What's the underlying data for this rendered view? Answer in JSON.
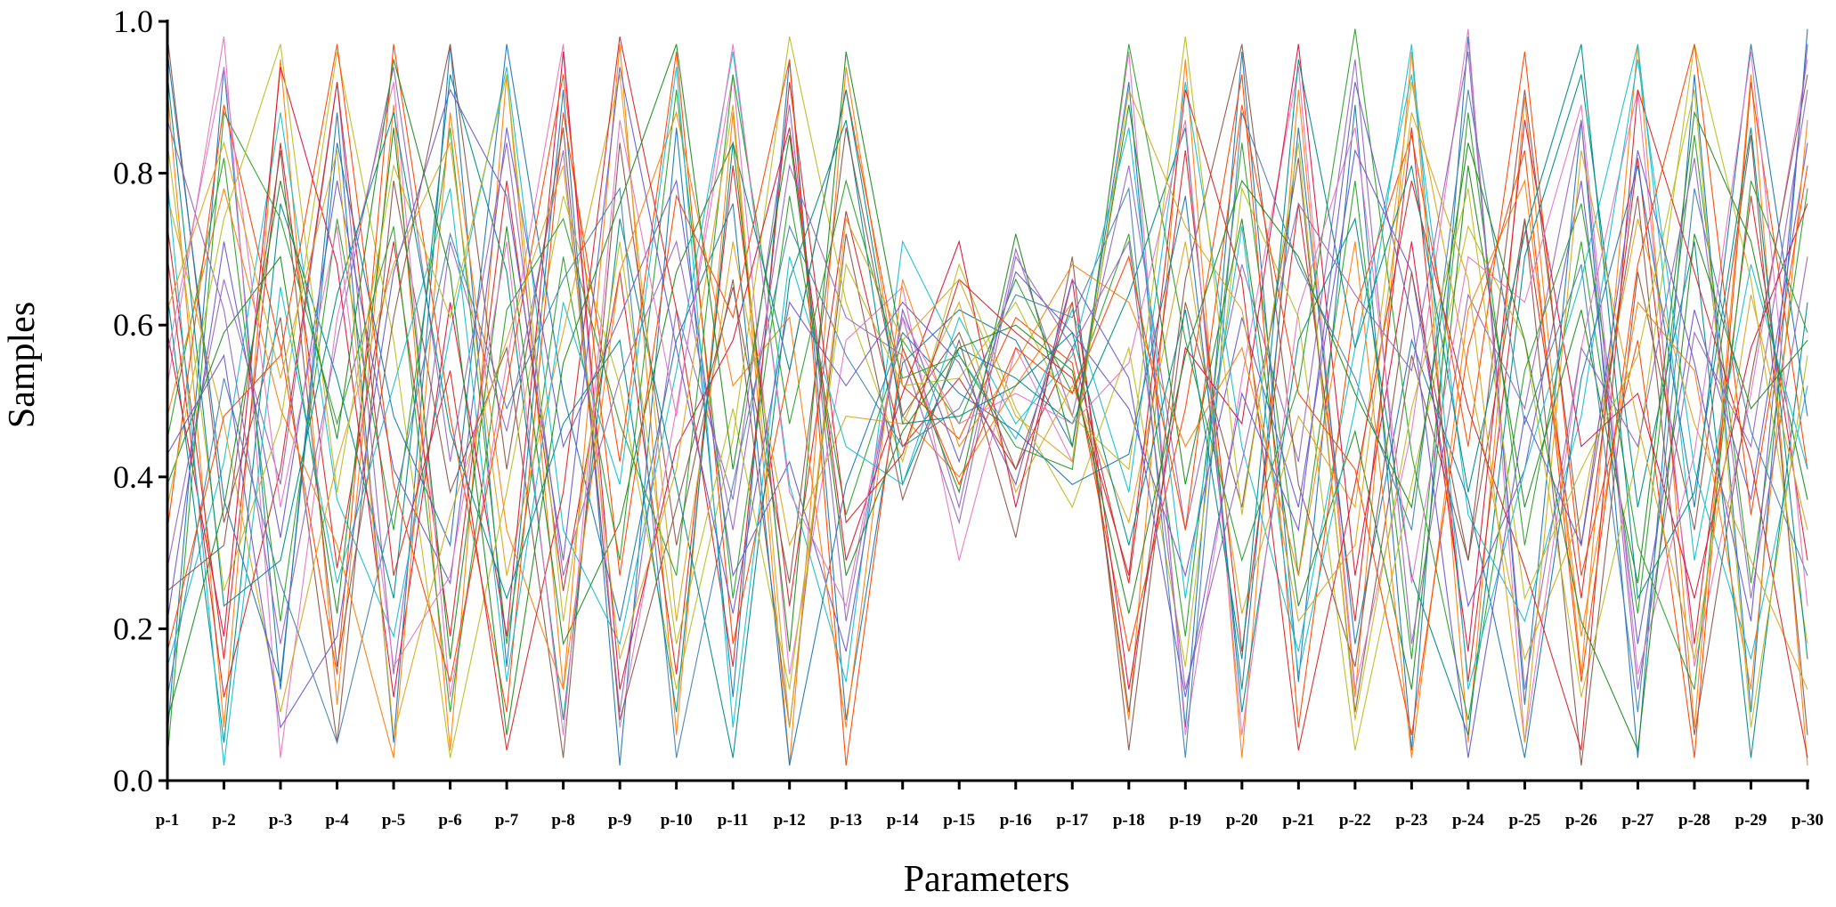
{
  "chart_data": {
    "type": "line",
    "subtype": "parallel-coordinates",
    "title": "",
    "xlabel": "Parameters",
    "ylabel": "Samples",
    "ylim": [
      0,
      1
    ],
    "y_ticks": [
      "0.0",
      "0.2",
      "0.4",
      "0.6",
      "0.8",
      "1.0"
    ],
    "categories": [
      "p-1",
      "p-2",
      "p-3",
      "p-4",
      "p-5",
      "p-6",
      "p-7",
      "p-8",
      "p-9",
      "p-10",
      "p-11",
      "p-12",
      "p-13",
      "p-14",
      "p-15",
      "p-16",
      "p-17",
      "p-18",
      "p-19",
      "p-20",
      "p-21",
      "p-22",
      "p-23",
      "p-24",
      "p-25",
      "p-26",
      "p-27",
      "p-28",
      "p-29",
      "p-30"
    ],
    "grid": false,
    "legend": "none",
    "series_colors": [
      "#1f77b4",
      "#ff7f0e",
      "#2ca02c",
      "#d62728",
      "#9467bd",
      "#8c564b",
      "#e377c2",
      "#17becf",
      "#bcbd22",
      "#ff4500",
      "#008b8b",
      "#6a5acd",
      "#daa520",
      "#228b22",
      "#dc143c",
      "#4682b4"
    ],
    "series": [
      {
        "values": [
          0.06,
          0.94,
          0.12,
          0.88,
          0.05,
          0.97,
          0.15,
          0.91,
          0.02,
          0.86,
          0.11,
          0.95,
          0.08,
          0.55,
          0.62,
          0.58,
          0.44,
          0.92,
          0.07,
          0.96,
          0.13,
          0.89,
          0.04,
          0.98,
          0.1,
          0.87,
          0.03,
          0.93,
          0.09,
          0.99
        ]
      },
      {
        "values": [
          0.91,
          0.07,
          0.95,
          0.1,
          0.89,
          0.04,
          0.93,
          0.12,
          0.97,
          0.06,
          0.88,
          0.02,
          0.94,
          0.48,
          0.4,
          0.52,
          0.63,
          0.08,
          0.95,
          0.03,
          0.91,
          0.11,
          0.96,
          0.05,
          0.9,
          0.14,
          0.97,
          0.07,
          0.93,
          0.02
        ]
      },
      {
        "values": [
          0.45,
          0.82,
          0.21,
          0.74,
          0.33,
          0.86,
          0.18,
          0.69,
          0.29,
          0.91,
          0.24,
          0.77,
          0.35,
          0.58,
          0.47,
          0.66,
          0.51,
          0.72,
          0.19,
          0.84,
          0.27,
          0.79,
          0.16,
          0.88,
          0.31,
          0.71,
          0.22,
          0.85,
          0.26,
          0.78
        ]
      },
      {
        "values": [
          0.73,
          0.16,
          0.84,
          0.28,
          0.71,
          0.19,
          0.79,
          0.25,
          0.67,
          0.14,
          0.81,
          0.23,
          0.75,
          0.44,
          0.53,
          0.41,
          0.57,
          0.26,
          0.83,
          0.17,
          0.76,
          0.21,
          0.86,
          0.13,
          0.74,
          0.24,
          0.82,
          0.18,
          0.77,
          0.29
        ]
      },
      {
        "values": [
          0.28,
          0.66,
          0.39,
          0.92,
          0.14,
          0.71,
          0.46,
          0.83,
          0.09,
          0.62,
          0.37,
          0.89,
          0.21,
          0.61,
          0.36,
          0.7,
          0.48,
          0.81,
          0.33,
          0.68,
          0.42,
          0.95,
          0.18,
          0.64,
          0.49,
          0.87,
          0.12,
          0.59,
          0.44,
          0.91
        ]
      },
      {
        "values": [
          0.98,
          0.34,
          0.61,
          0.05,
          0.79,
          0.38,
          0.57,
          0.03,
          0.84,
          0.31,
          0.66,
          0.07,
          0.72,
          0.37,
          0.58,
          0.32,
          0.69,
          0.04,
          0.63,
          0.36,
          0.82,
          0.09,
          0.56,
          0.29,
          0.74,
          0.02,
          0.67,
          0.33,
          0.85,
          0.06
        ]
      },
      {
        "values": [
          0.52,
          0.98,
          0.03,
          0.61,
          0.92,
          0.11,
          0.55,
          0.97,
          0.07,
          0.49,
          0.93,
          0.14,
          0.58,
          0.65,
          0.29,
          0.57,
          0.42,
          0.96,
          0.06,
          0.53,
          0.94,
          0.12,
          0.46,
          0.99,
          0.05,
          0.57,
          0.91,
          0.15,
          0.51,
          0.95
        ]
      },
      {
        "values": [
          0.15,
          0.42,
          0.88,
          0.37,
          0.19,
          0.59,
          0.94,
          0.33,
          0.18,
          0.54,
          0.96,
          0.39,
          0.13,
          0.71,
          0.56,
          0.45,
          0.62,
          0.38,
          0.92,
          0.44,
          0.17,
          0.57,
          0.93,
          0.35,
          0.21,
          0.48,
          0.95,
          0.41,
          0.16,
          0.52
        ]
      },
      {
        "values": [
          0.84,
          0.25,
          0.47,
          0.96,
          0.58,
          0.03,
          0.38,
          0.77,
          0.52,
          0.12,
          0.45,
          0.98,
          0.63,
          0.42,
          0.68,
          0.49,
          0.36,
          0.57,
          0.15,
          0.78,
          0.61,
          0.04,
          0.39,
          0.73,
          0.58,
          0.11,
          0.43,
          0.97,
          0.66,
          0.18
        ]
      },
      {
        "values": [
          0.33,
          0.89,
          0.57,
          0.14,
          0.97,
          0.48,
          0.09,
          0.88,
          0.42,
          0.96,
          0.18,
          0.54,
          0.91,
          0.52,
          0.45,
          0.61,
          0.55,
          0.17,
          0.49,
          0.93,
          0.07,
          0.62,
          0.85,
          0.44,
          0.96,
          0.27,
          0.58,
          0.03,
          0.92,
          0.41
        ]
      },
      {
        "values": [
          0.64,
          0.05,
          0.76,
          0.53,
          0.24,
          0.93,
          0.67,
          0.08,
          0.74,
          0.39,
          0.03,
          0.66,
          0.87,
          0.39,
          0.57,
          0.53,
          0.47,
          0.64,
          0.86,
          0.09,
          0.58,
          0.74,
          0.27,
          0.06,
          0.69,
          0.93,
          0.36,
          0.71,
          0.03,
          0.63
        ]
      },
      {
        "values": [
          0.21,
          0.71,
          0.32,
          0.79,
          0.41,
          0.26,
          0.86,
          0.44,
          0.61,
          0.79,
          0.27,
          0.42,
          0.17,
          0.62,
          0.42,
          0.67,
          0.59,
          0.49,
          0.27,
          0.61,
          0.36,
          0.83,
          0.67,
          0.23,
          0.41,
          0.79,
          0.18,
          0.62,
          0.37,
          0.84
        ]
      },
      {
        "values": [
          0.77,
          0.47,
          0.09,
          0.42,
          0.68,
          0.84,
          0.27,
          0.59,
          0.93,
          0.21,
          0.71,
          0.31,
          0.48,
          0.47,
          0.63,
          0.38,
          0.52,
          0.34,
          0.71,
          0.22,
          0.48,
          0.36,
          0.92,
          0.54,
          0.16,
          0.35,
          0.74,
          0.47,
          0.29,
          0.12
        ]
      },
      {
        "values": [
          0.39,
          0.59,
          0.69,
          0.22,
          0.86,
          0.16,
          0.73,
          0.18,
          0.34,
          0.67,
          0.84,
          0.17,
          0.96,
          0.57,
          0.38,
          0.72,
          0.44,
          0.89,
          0.39,
          0.74,
          0.23,
          0.46,
          0.12,
          0.81,
          0.36,
          0.62,
          0.26,
          0.88,
          0.71,
          0.37
        ]
      },
      {
        "values": [
          0.59,
          0.19,
          0.94,
          0.68,
          0.11,
          0.63,
          0.19,
          0.96,
          0.12,
          0.44,
          0.58,
          0.86,
          0.29,
          0.51,
          0.71,
          0.36,
          0.66,
          0.12,
          0.57,
          0.47,
          0.97,
          0.27,
          0.71,
          0.17,
          0.87,
          0.44,
          0.51,
          0.24,
          0.57,
          0.76
        ]
      },
      {
        "values": [
          0.11,
          0.53,
          0.26,
          0.05,
          0.36,
          0.72,
          0.49,
          0.66,
          0.78,
          0.03,
          0.39,
          0.73,
          0.56,
          0.44,
          0.49,
          0.64,
          0.61,
          0.78,
          0.03,
          0.88,
          0.68,
          0.53,
          0.33,
          0.91,
          0.47,
          0.68,
          0.09,
          0.78,
          0.46,
          0.27
        ]
      },
      {
        "values": [
          0.96,
          0.37,
          0.13,
          0.84,
          0.48,
          0.31,
          0.97,
          0.51,
          0.21,
          0.58,
          0.76,
          0.02,
          0.39,
          0.59,
          0.51,
          0.46,
          0.39,
          0.43,
          0.77,
          0.12,
          0.86,
          0.18,
          0.58,
          0.37,
          0.03,
          0.53,
          0.81,
          0.36,
          0.97,
          0.48
        ]
      },
      {
        "values": [
          0.48,
          0.78,
          0.49,
          0.31,
          0.03,
          0.88,
          0.33,
          0.12,
          0.67,
          0.88,
          0.52,
          0.61,
          0.07,
          0.66,
          0.44,
          0.55,
          0.68,
          0.63,
          0.44,
          0.57,
          0.27,
          0.71,
          0.03,
          0.62,
          0.79,
          0.19,
          0.63,
          0.54,
          0.12,
          0.87
        ]
      },
      {
        "values": [
          0.03,
          0.88,
          0.74,
          0.47,
          0.73,
          0.09,
          0.62,
          0.74,
          0.47,
          0.27,
          0.93,
          0.47,
          0.79,
          0.53,
          0.56,
          0.44,
          0.41,
          0.97,
          0.58,
          0.29,
          0.52,
          0.99,
          0.43,
          0.08,
          0.54,
          0.76,
          0.31,
          0.12,
          0.79,
          0.59
        ]
      },
      {
        "values": [
          0.69,
          0.11,
          0.41,
          0.92,
          0.27,
          0.54,
          0.04,
          0.38,
          0.98,
          0.62,
          0.15,
          0.92,
          0.34,
          0.43,
          0.66,
          0.59,
          0.53,
          0.27,
          0.91,
          0.66,
          0.04,
          0.39,
          0.79,
          0.49,
          0.28,
          0.04,
          0.91,
          0.67,
          0.42,
          0.03
        ]
      },
      {
        "values": [
          0.87,
          0.62,
          0.18,
          0.58,
          0.94,
          0.42,
          0.84,
          0.27,
          0.53,
          0.71,
          0.33,
          0.81,
          0.61,
          0.56,
          0.34,
          0.69,
          0.57,
          0.71,
          0.12,
          0.42,
          0.76,
          0.64,
          0.54,
          0.96,
          0.12,
          0.57,
          0.44,
          0.82,
          0.24,
          0.69
        ]
      },
      {
        "values": [
          0.25,
          0.31,
          0.83,
          0.15,
          0.61,
          0.97,
          0.41,
          0.86,
          0.08,
          0.36,
          0.65,
          0.26,
          0.86,
          0.48,
          0.59,
          0.41,
          0.63,
          0.09,
          0.66,
          0.97,
          0.39,
          0.15,
          0.67,
          0.29,
          0.91,
          0.31,
          0.77,
          0.06,
          0.53,
          0.93
        ]
      },
      {
        "values": [
          0.56,
          0.94,
          0.36,
          0.73,
          0.15,
          0.27,
          0.71,
          0.06,
          0.87,
          0.48,
          0.97,
          0.38,
          0.23,
          0.61,
          0.47,
          0.51,
          0.47,
          0.55,
          0.87,
          0.06,
          0.62,
          0.86,
          0.26,
          0.69,
          0.63,
          0.89,
          0.14,
          0.43,
          0.96,
          0.23
        ]
      },
      {
        "values": [
          0.79,
          0.02,
          0.65,
          0.26,
          0.52,
          0.78,
          0.13,
          0.63,
          0.39,
          0.94,
          0.07,
          0.69,
          0.44,
          0.39,
          0.61,
          0.47,
          0.56,
          0.86,
          0.24,
          0.73,
          0.14,
          0.49,
          0.97,
          0.12,
          0.41,
          0.66,
          0.97,
          0.29,
          0.68,
          0.41
        ]
      },
      {
        "values": [
          0.36,
          0.74,
          0.97,
          0.38,
          0.81,
          0.61,
          0.93,
          0.21,
          0.71,
          0.18,
          0.49,
          0.12,
          0.68,
          0.52,
          0.53,
          0.63,
          0.48,
          0.41,
          0.98,
          0.35,
          0.84,
          0.08,
          0.49,
          0.78,
          0.24,
          0.41,
          0.56,
          0.91,
          0.07,
          0.56
        ]
      },
      {
        "values": [
          0.17,
          0.48,
          0.56,
          0.97,
          0.39,
          0.13,
          0.52,
          0.93,
          0.27,
          0.77,
          0.61,
          0.95,
          0.02,
          0.57,
          0.39,
          0.57,
          0.51,
          0.69,
          0.33,
          0.89,
          0.51,
          0.41,
          0.06,
          0.57,
          0.83,
          0.13,
          0.68,
          0.97,
          0.35,
          0.81
        ]
      },
      {
        "values": [
          0.93,
          0.23,
          0.29,
          0.64,
          0.88,
          0.46,
          0.24,
          0.47,
          0.58,
          0.09,
          0.84,
          0.54,
          0.91,
          0.47,
          0.48,
          0.52,
          0.59,
          0.31,
          0.62,
          0.16,
          0.95,
          0.57,
          0.81,
          0.38,
          0.72,
          0.97,
          0.24,
          0.38,
          0.86,
          0.16
        ]
      },
      {
        "values": [
          0.43,
          0.56,
          0.07,
          0.19,
          0.67,
          0.91,
          0.77,
          0.29,
          0.94,
          0.57,
          0.22,
          0.63,
          0.52,
          0.63,
          0.55,
          0.39,
          0.66,
          0.53,
          0.11,
          0.51,
          0.33,
          0.92,
          0.61,
          0.03,
          0.48,
          0.31,
          0.83,
          0.55,
          0.21,
          0.97
        ]
      },
      {
        "values": [
          0.62,
          0.84,
          0.53,
          0.83,
          0.06,
          0.35,
          0.58,
          0.81,
          0.16,
          0.41,
          0.89,
          0.07,
          0.74,
          0.58,
          0.66,
          0.48,
          0.42,
          0.91,
          0.73,
          0.62,
          0.21,
          0.31,
          0.88,
          0.66,
          0.05,
          0.83,
          0.47,
          0.16,
          0.64,
          0.33
        ]
      },
      {
        "values": [
          0.08,
          0.36,
          0.79,
          0.45,
          0.95,
          0.67,
          0.06,
          0.55,
          0.76,
          0.97,
          0.41,
          0.85,
          0.27,
          0.46,
          0.57,
          0.6,
          0.54,
          0.22,
          0.56,
          0.79,
          0.69,
          0.51,
          0.36,
          0.84,
          0.58,
          0.21,
          0.04,
          0.72,
          0.49,
          0.58
        ]
      }
    ]
  }
}
